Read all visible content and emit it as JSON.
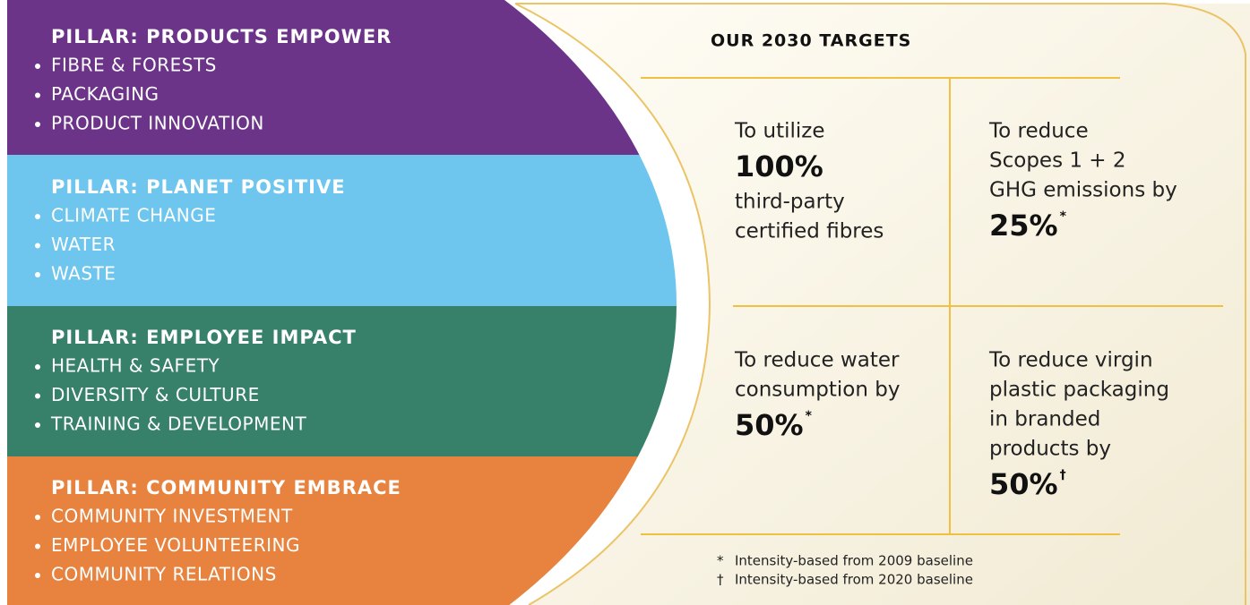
{
  "pillars": [
    {
      "title": "PILLAR: PRODUCTS EMPOWER",
      "items": [
        "FIBRE & FORESTS",
        "PACKAGING",
        "PRODUCT INNOVATION"
      ]
    },
    {
      "title": "PILLAR: PLANET POSITIVE",
      "items": [
        "CLIMATE CHANGE",
        "WATER",
        "WASTE"
      ]
    },
    {
      "title": "PILLAR: EMPLOYEE IMPACT",
      "items": [
        "HEALTH & SAFETY",
        "DIVERSITY & CULTURE",
        "TRAINING & DEVELOPMENT"
      ]
    },
    {
      "title": "PILLAR: COMMUNITY EMBRACE",
      "items": [
        "COMMUNITY INVESTMENT",
        "EMPLOYEE VOLUNTEERING",
        "COMMUNITY RELATIONS"
      ]
    }
  ],
  "targets": {
    "title": "OUR 2030 TARGETS",
    "cells": [
      {
        "before": [
          "To utilize"
        ],
        "value": "100%",
        "after": [
          "third-party",
          "certified fibres"
        ]
      },
      {
        "before": [
          "To reduce",
          "Scopes 1 + 2",
          "GHG emissions by"
        ],
        "value": "25%",
        "marker": "*"
      },
      {
        "before": [
          "To reduce water",
          "consumption by"
        ],
        "value": "50%",
        "marker": "*"
      },
      {
        "before": [
          "To reduce virgin",
          "plastic packaging",
          "in branded",
          "products by"
        ],
        "value": "50%",
        "marker": "†"
      }
    ],
    "footnotes": [
      {
        "symbol": "*",
        "text": "Intensity-based from 2009 baseline"
      },
      {
        "symbol": "†",
        "text": "Intensity-based from 2020 baseline"
      }
    ]
  }
}
